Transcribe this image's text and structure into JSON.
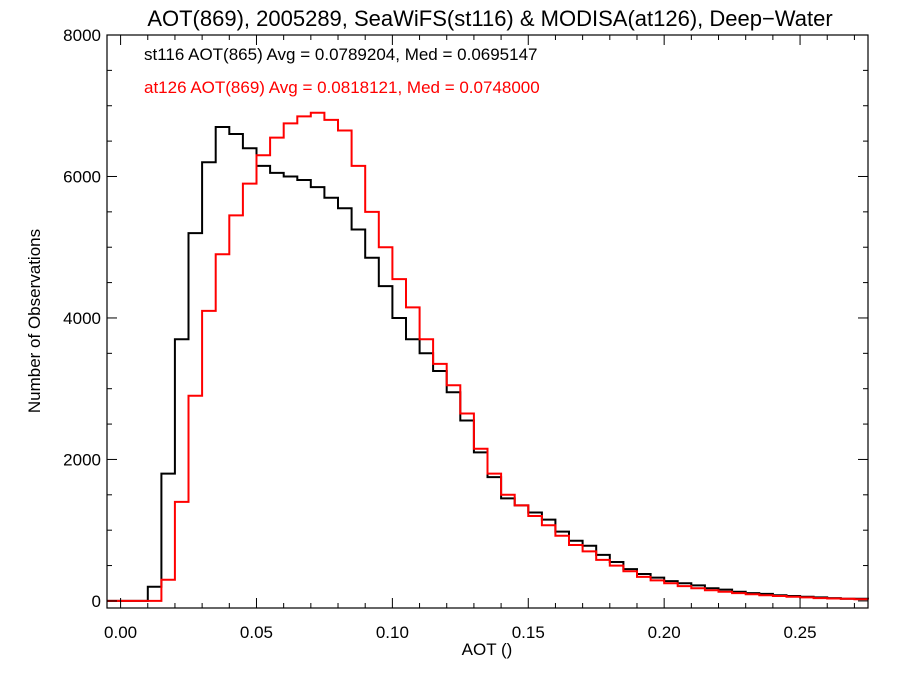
{
  "chart_data": {
    "type": "line",
    "title": "AOT(869), 2005289, SeaWiFS(st116) & MODISA(at126), Deep−Water",
    "xlabel": "AOT ()",
    "ylabel": "Number of Observations",
    "xlim": [
      -0.005,
      0.275
    ],
    "ylim": [
      -100,
      8000
    ],
    "xticks": [
      0.0,
      0.05,
      0.1,
      0.15,
      0.2,
      0.25
    ],
    "xtick_labels": [
      "0.00",
      "0.05",
      "0.10",
      "0.15",
      "0.20",
      "0.25"
    ],
    "yticks": [
      0,
      2000,
      4000,
      6000,
      8000
    ],
    "ytick_labels": [
      "0",
      "2000",
      "4000",
      "6000",
      "8000"
    ],
    "grid": false,
    "legend_position": "top-left",
    "series": [
      {
        "name": "st116 AOT(865) Avg = 0.0789204, Med = 0.0695147",
        "color": "#000000",
        "step": "histogram",
        "x": [
          -0.005,
          0.0,
          0.005,
          0.01,
          0.015,
          0.02,
          0.025,
          0.03,
          0.035,
          0.04,
          0.045,
          0.05,
          0.055,
          0.06,
          0.065,
          0.07,
          0.075,
          0.08,
          0.085,
          0.09,
          0.095,
          0.1,
          0.105,
          0.11,
          0.115,
          0.12,
          0.125,
          0.13,
          0.135,
          0.14,
          0.145,
          0.15,
          0.155,
          0.16,
          0.165,
          0.17,
          0.175,
          0.18,
          0.185,
          0.19,
          0.195,
          0.2,
          0.205,
          0.21,
          0.215,
          0.22,
          0.225,
          0.23,
          0.235,
          0.24,
          0.245,
          0.25,
          0.255,
          0.26,
          0.265,
          0.27,
          0.275
        ],
        "y": [
          0,
          0,
          0,
          200,
          1800,
          3700,
          5200,
          6200,
          6700,
          6600,
          6400,
          6150,
          6050,
          6000,
          5950,
          5850,
          5700,
          5550,
          5250,
          4850,
          4450,
          4000,
          3700,
          3500,
          3250,
          2950,
          2550,
          2100,
          1750,
          1450,
          1350,
          1250,
          1150,
          980,
          850,
          780,
          650,
          550,
          450,
          380,
          330,
          280,
          250,
          220,
          180,
          160,
          130,
          110,
          100,
          80,
          70,
          60,
          50,
          40,
          30,
          30,
          20
        ]
      },
      {
        "name": "at126 AOT(869) Avg = 0.0818121, Med = 0.0748000",
        "color": "#ff0000",
        "step": "histogram",
        "x": [
          -0.005,
          0.0,
          0.005,
          0.01,
          0.015,
          0.02,
          0.025,
          0.03,
          0.035,
          0.04,
          0.045,
          0.05,
          0.055,
          0.06,
          0.065,
          0.07,
          0.075,
          0.08,
          0.085,
          0.09,
          0.095,
          0.1,
          0.105,
          0.11,
          0.115,
          0.12,
          0.125,
          0.13,
          0.135,
          0.14,
          0.145,
          0.15,
          0.155,
          0.16,
          0.165,
          0.17,
          0.175,
          0.18,
          0.185,
          0.19,
          0.195,
          0.2,
          0.205,
          0.21,
          0.215,
          0.22,
          0.225,
          0.23,
          0.235,
          0.24,
          0.245,
          0.25,
          0.255,
          0.26,
          0.265,
          0.27,
          0.275
        ],
        "y": [
          0,
          0,
          0,
          0,
          300,
          1400,
          2900,
          4100,
          4900,
          5450,
          5900,
          6300,
          6550,
          6750,
          6850,
          6900,
          6800,
          6650,
          6150,
          5500,
          5000,
          4550,
          4150,
          3700,
          3350,
          3050,
          2650,
          2150,
          1800,
          1500,
          1350,
          1200,
          1070,
          920,
          790,
          700,
          580,
          500,
          420,
          340,
          290,
          250,
          210,
          180,
          150,
          130,
          110,
          95,
          80,
          70,
          60,
          50,
          40,
          35,
          30,
          25,
          20
        ]
      }
    ]
  }
}
